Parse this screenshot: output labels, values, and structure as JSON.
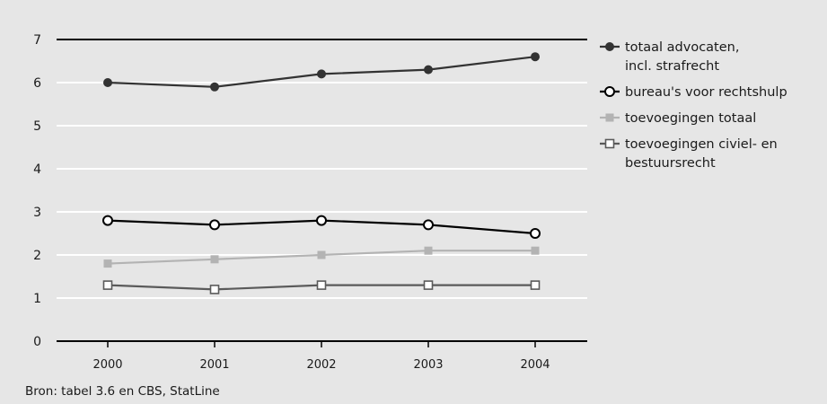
{
  "chart_data": {
    "type": "line",
    "x": [
      "2000",
      "2001",
      "2002",
      "2003",
      "2004"
    ],
    "yticks": [
      "0",
      "1",
      "2",
      "3",
      "4",
      "5",
      "6",
      "7"
    ],
    "ylim": [
      0,
      7
    ],
    "grid": true,
    "legend_position": "right",
    "series": [
      {
        "name": [
          "totaal advocaten,",
          "incl. strafrecht"
        ],
        "values": [
          6.0,
          5.9,
          6.2,
          6.3,
          6.6
        ],
        "color": "#333333",
        "marker": "filled-circle"
      },
      {
        "name": [
          "bureau's voor rechtshulp"
        ],
        "values": [
          2.8,
          2.7,
          2.8,
          2.7,
          2.5
        ],
        "color": "#000000",
        "marker": "open-circle"
      },
      {
        "name": [
          "toevoegingen totaal"
        ],
        "values": [
          1.8,
          1.9,
          2.0,
          2.1,
          2.1
        ],
        "color": "#b3b3b3",
        "marker": "filled-square"
      },
      {
        "name": [
          "toevoegingen civiel- en",
          "bestuursrecht"
        ],
        "values": [
          1.3,
          1.2,
          1.3,
          1.3,
          1.3
        ],
        "color": "#5a5a5a",
        "marker": "open-square"
      }
    ]
  },
  "source": "Bron: tabel 3.6 en CBS, StatLine"
}
